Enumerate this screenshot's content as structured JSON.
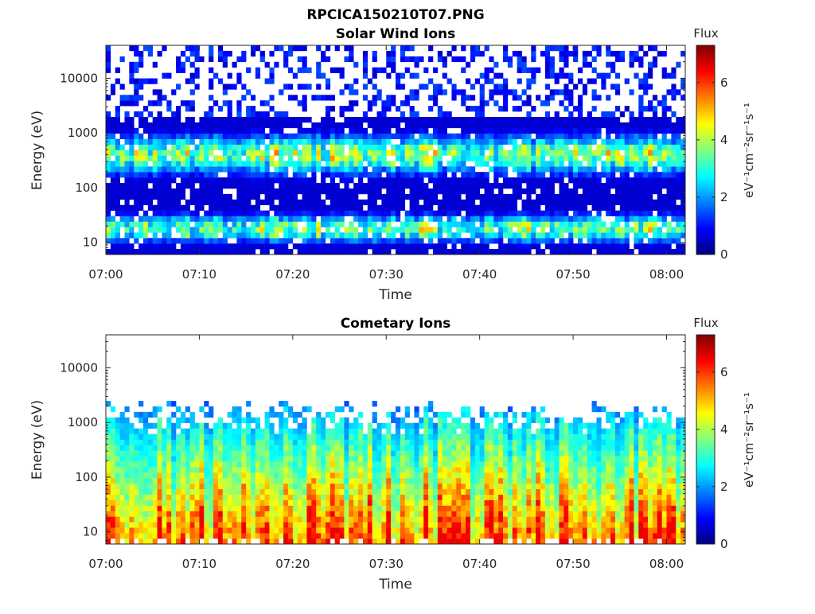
{
  "figure_title": "RPCICA150210T07.PNG",
  "chart_data": [
    {
      "type": "heatmap",
      "title": "Solar Wind Ions",
      "xlabel": "Time",
      "ylabel": "Energy (eV)",
      "y_scale": "log",
      "x_range": [
        "07:00",
        "08:02"
      ],
      "ylim": [
        6,
        40000
      ],
      "x_ticks": [
        "07:00",
        "07:10",
        "07:20",
        "07:30",
        "07:40",
        "07:50",
        "08:00"
      ],
      "y_ticks": [
        "10",
        "100",
        "1000",
        "10000"
      ],
      "colorbar": {
        "title": "Flux",
        "label": "eV⁻¹cm⁻²sr⁻¹s⁻¹",
        "range": [
          0,
          7.3
        ],
        "ticks": [
          "0",
          "2",
          "4",
          "6"
        ],
        "colormap": "jet"
      },
      "profile": {
        "peak_energy_eV": 400,
        "flux_peak": 3.8,
        "band_width_decades": 0.35,
        "low_energy_energy_eV": 18,
        "low_energy_flux": 3.6,
        "sparse_high_energy_flux": 1.0,
        "coverage_high_energy": 0.35,
        "coverage_mid_energy": 0.9,
        "max_value_near": {
          "time": "07:03",
          "energy_eV": 500,
          "flux": 4.6
        }
      }
    },
    {
      "type": "heatmap",
      "title": "Cometary Ions",
      "xlabel": "Time",
      "ylabel": "Energy (eV)",
      "y_scale": "log",
      "x_range": [
        "07:00",
        "08:02"
      ],
      "ylim": [
        6,
        40000
      ],
      "x_ticks": [
        "07:00",
        "07:10",
        "07:20",
        "07:30",
        "07:40",
        "07:50",
        "08:00"
      ],
      "y_ticks": [
        "10",
        "100",
        "1000",
        "10000"
      ],
      "colorbar": {
        "title": "Flux",
        "label": "eV⁻¹cm⁻²sr⁻¹s⁻¹",
        "range": [
          0,
          7.3
        ],
        "ticks": [
          "0",
          "2",
          "4",
          "6"
        ],
        "colormap": "jet"
      },
      "profile": {
        "peak_energy_eV": 20,
        "flux_peak": 5.2,
        "flux_at_100eV": 3.6,
        "flux_at_1000eV": 1.6,
        "upper_cutoff_eV": 2500,
        "max_value_near": {
          "time": "07:06",
          "energy_eV": 20,
          "flux": 5.7
        }
      }
    }
  ]
}
